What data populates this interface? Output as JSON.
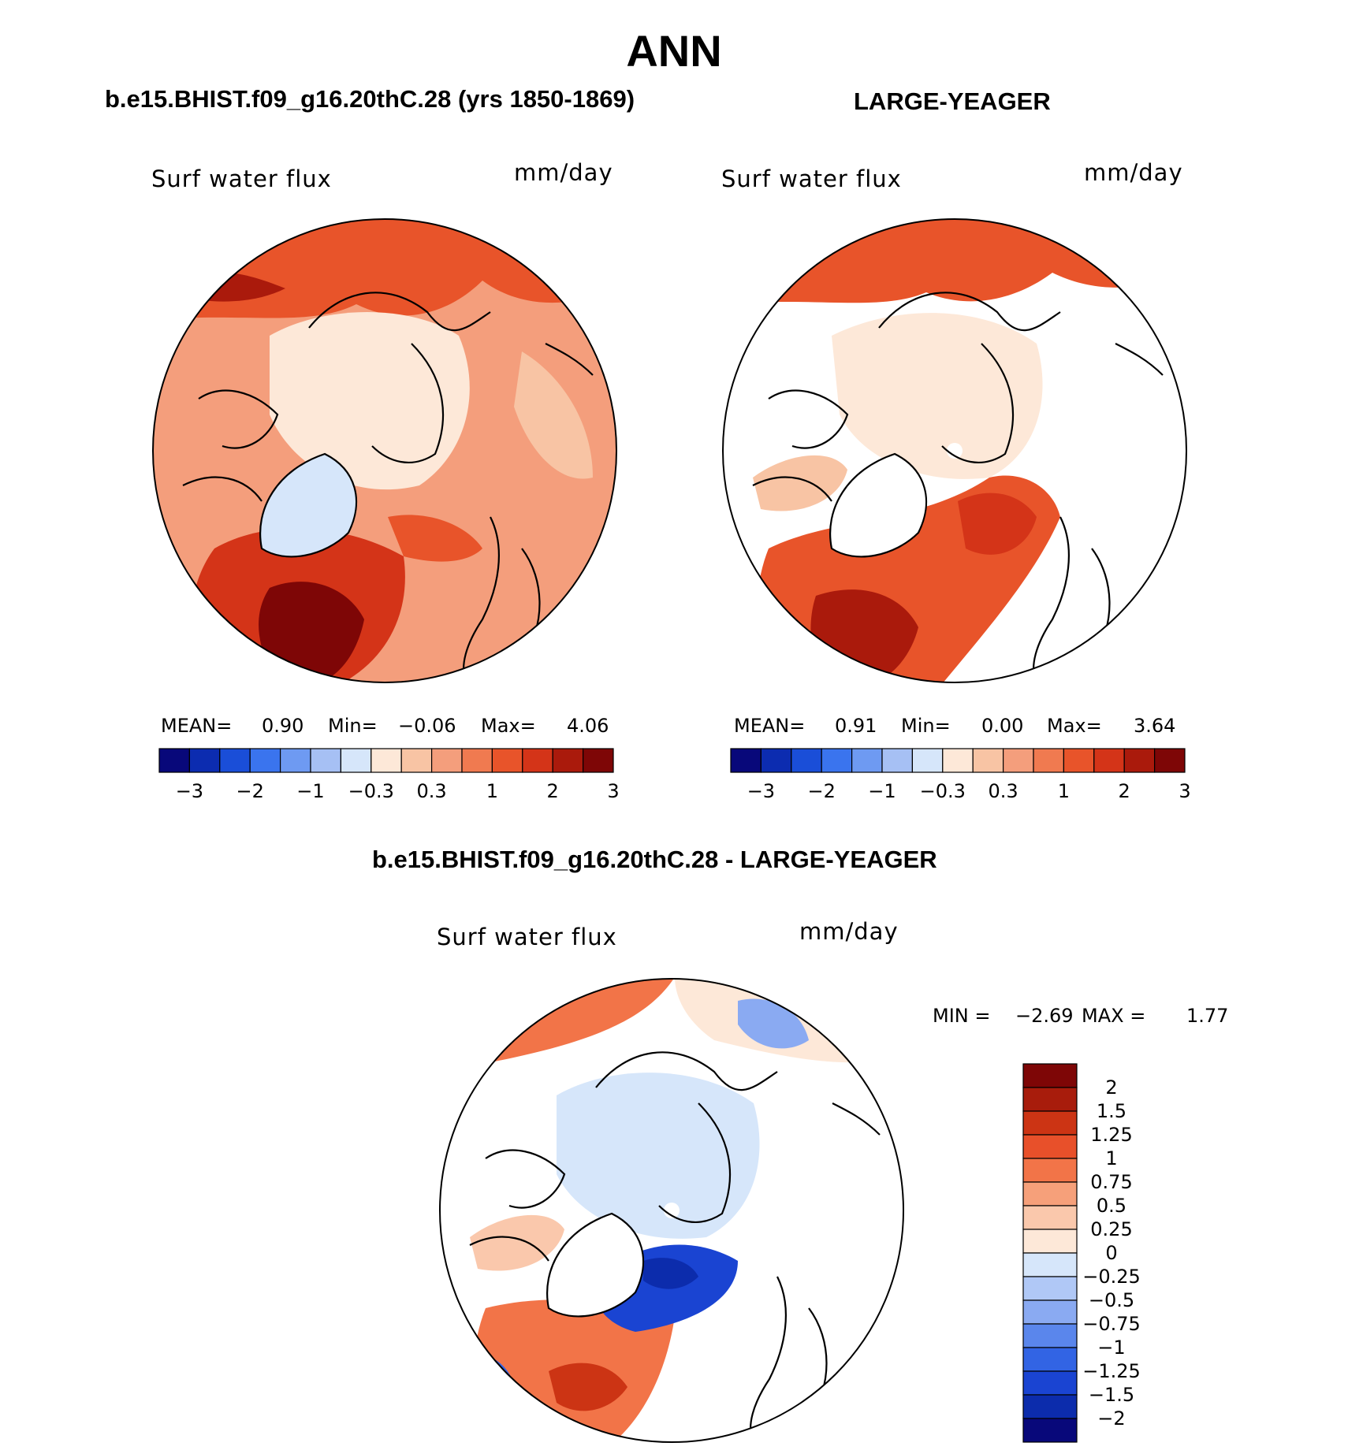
{
  "title": "ANN",
  "variable": "Surf water flux",
  "units": "mm/day",
  "colors": {
    "full_scale": [
      "#08087a",
      "#0c2cb0",
      "#1a4ed8",
      "#3a74ee",
      "#6e9af2",
      "#a6c0f4",
      "#d6e6fa",
      "#fde8d8",
      "#f8c4a4",
      "#f49e7c",
      "#f07a50",
      "#e8542a",
      "#d43418",
      "#aa1a0c",
      "#7e0606"
    ],
    "diff_scale": [
      "#7e0606",
      "#a81c0c",
      "#cc3414",
      "#e8502a",
      "#f27448",
      "#f6a07a",
      "#fac8ac",
      "#fde8d8",
      "#d6e6fa",
      "#b0c8f6",
      "#8aaaf2",
      "#5a86ec",
      "#3264e4",
      "#1a44d2",
      "#0c2cac",
      "#08087a"
    ],
    "land": "#ffffff",
    "coast": "#000000"
  },
  "chart_data": [
    {
      "type": "heatmap",
      "projection": "north-polar-stereographic",
      "title": "b.e15.BHIST.f09_g16.20thC.28 (yrs 1850-1869)",
      "variable": "Surf water flux",
      "units": "mm/day",
      "stats": {
        "mean_label": "MEAN=",
        "mean": "0.90",
        "min_label": "Min=",
        "min": "−0.06",
        "max_label": "Max=",
        "max": "4.06"
      },
      "colorbar": {
        "orientation": "horizontal",
        "tick_labels": [
          "−3",
          "−2",
          "−1",
          "−0.3",
          "0.3",
          "1",
          "2",
          "3"
        ]
      }
    },
    {
      "type": "heatmap",
      "projection": "north-polar-stereographic",
      "title": "LARGE-YEAGER",
      "variable": "Surf water flux",
      "units": "mm/day",
      "stats": {
        "mean_label": "MEAN=",
        "mean": "0.91",
        "min_label": "Min=",
        "min": "0.00",
        "max_label": "Max=",
        "max": "3.64"
      },
      "colorbar": {
        "orientation": "horizontal",
        "tick_labels": [
          "−3",
          "−2",
          "−1",
          "−0.3",
          "0.3",
          "1",
          "2",
          "3"
        ]
      }
    },
    {
      "type": "heatmap",
      "projection": "north-polar-stereographic",
      "title": "b.e15.BHIST.f09_g16.20thC.28 - LARGE-YEAGER",
      "variable": "Surf water flux",
      "units": "mm/day",
      "stats": {
        "min_label": "MIN =",
        "min": "−2.69",
        "max_label": "MAX =",
        "max": "1.77"
      },
      "colorbar": {
        "orientation": "vertical",
        "tick_labels": [
          "2",
          "1.5",
          "1.25",
          "1",
          "0.75",
          "0.5",
          "0.25",
          "0",
          "−0.25",
          "−0.5",
          "−0.75",
          "−1",
          "−1.25",
          "−1.5",
          "−2"
        ]
      }
    }
  ]
}
